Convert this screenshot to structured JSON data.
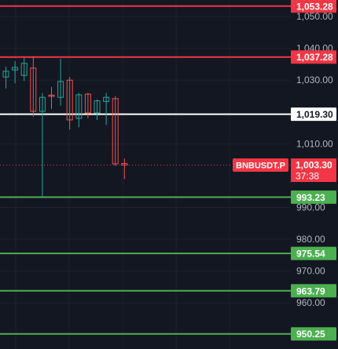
{
  "chart_data": {
    "type": "candlestick",
    "symbol": "BNBUSDT.P",
    "countdown": "37:38",
    "last_price": 1003.3,
    "last_price_label": "1,003.30",
    "y_range": [
      945.5,
      1055.2
    ],
    "y_ticks": [
      {
        "value": 1050,
        "label": "1,050.00"
      },
      {
        "value": 1040,
        "label": "1,040.00"
      },
      {
        "value": 1030,
        "label": "1,030.00"
      },
      {
        "value": 1010,
        "label": "1,010.00"
      },
      {
        "value": 990,
        "label": "990.00"
      },
      {
        "value": 980,
        "label": "980.00"
      },
      {
        "value": 970,
        "label": "970.00"
      },
      {
        "value": 960,
        "label": "960.00"
      }
    ],
    "levels": [
      {
        "value": 1053.28,
        "label": "1,053.28",
        "color": "#f23645",
        "kind": "resistance"
      },
      {
        "value": 1037.28,
        "label": "1,037.28",
        "color": "#f23645",
        "kind": "resistance"
      },
      {
        "value": 1019.3,
        "label": "1,019.30",
        "color": "#ffffff",
        "kind": "pivot"
      },
      {
        "value": 993.23,
        "label": "993.23",
        "color": "#4caf50",
        "kind": "support"
      },
      {
        "value": 975.54,
        "label": "975.54",
        "color": "#4caf50",
        "kind": "support"
      },
      {
        "value": 963.79,
        "label": "963.79",
        "color": "#4caf50",
        "kind": "support"
      },
      {
        "value": 950.25,
        "label": "950.25",
        "color": "#4caf50",
        "kind": "support"
      }
    ],
    "candles": [
      {
        "o": 1031.0,
        "h": 1034.2,
        "l": 1027.4,
        "c": 1032.8
      },
      {
        "o": 1033.2,
        "h": 1036.0,
        "l": 1029.0,
        "c": 1034.0
      },
      {
        "o": 1031.5,
        "h": 1037.0,
        "l": 1029.8,
        "c": 1035.3
      },
      {
        "o": 1033.8,
        "h": 1037.5,
        "l": 1018.5,
        "c": 1020.2
      },
      {
        "o": 1020.2,
        "h": 1026.0,
        "l": 993.2,
        "c": 1024.6
      },
      {
        "o": 1025.3,
        "h": 1027.8,
        "l": 1021.0,
        "c": 1024.9
      },
      {
        "o": 1024.6,
        "h": 1036.7,
        "l": 1022.0,
        "c": 1029.6
      },
      {
        "o": 1030.0,
        "h": 1031.0,
        "l": 1014.5,
        "c": 1017.5
      },
      {
        "o": 1018.0,
        "h": 1026.0,
        "l": 1015.2,
        "c": 1025.4
      },
      {
        "o": 1025.6,
        "h": 1026.0,
        "l": 1018.0,
        "c": 1019.7
      },
      {
        "o": 1019.7,
        "h": 1024.0,
        "l": 1017.5,
        "c": 1023.5
      },
      {
        "o": 1023.3,
        "h": 1026.0,
        "l": 1015.9,
        "c": 1024.6
      },
      {
        "o": 1024.2,
        "h": 1025.0,
        "l": 1003.0,
        "c": 1003.7
      },
      {
        "o": 1003.8,
        "h": 1005.4,
        "l": 998.9,
        "c": 1003.3
      }
    ]
  },
  "colors": {
    "background": "#131722",
    "grid": "#1e222d",
    "up": "#26a69a",
    "down": "#ef5350"
  }
}
